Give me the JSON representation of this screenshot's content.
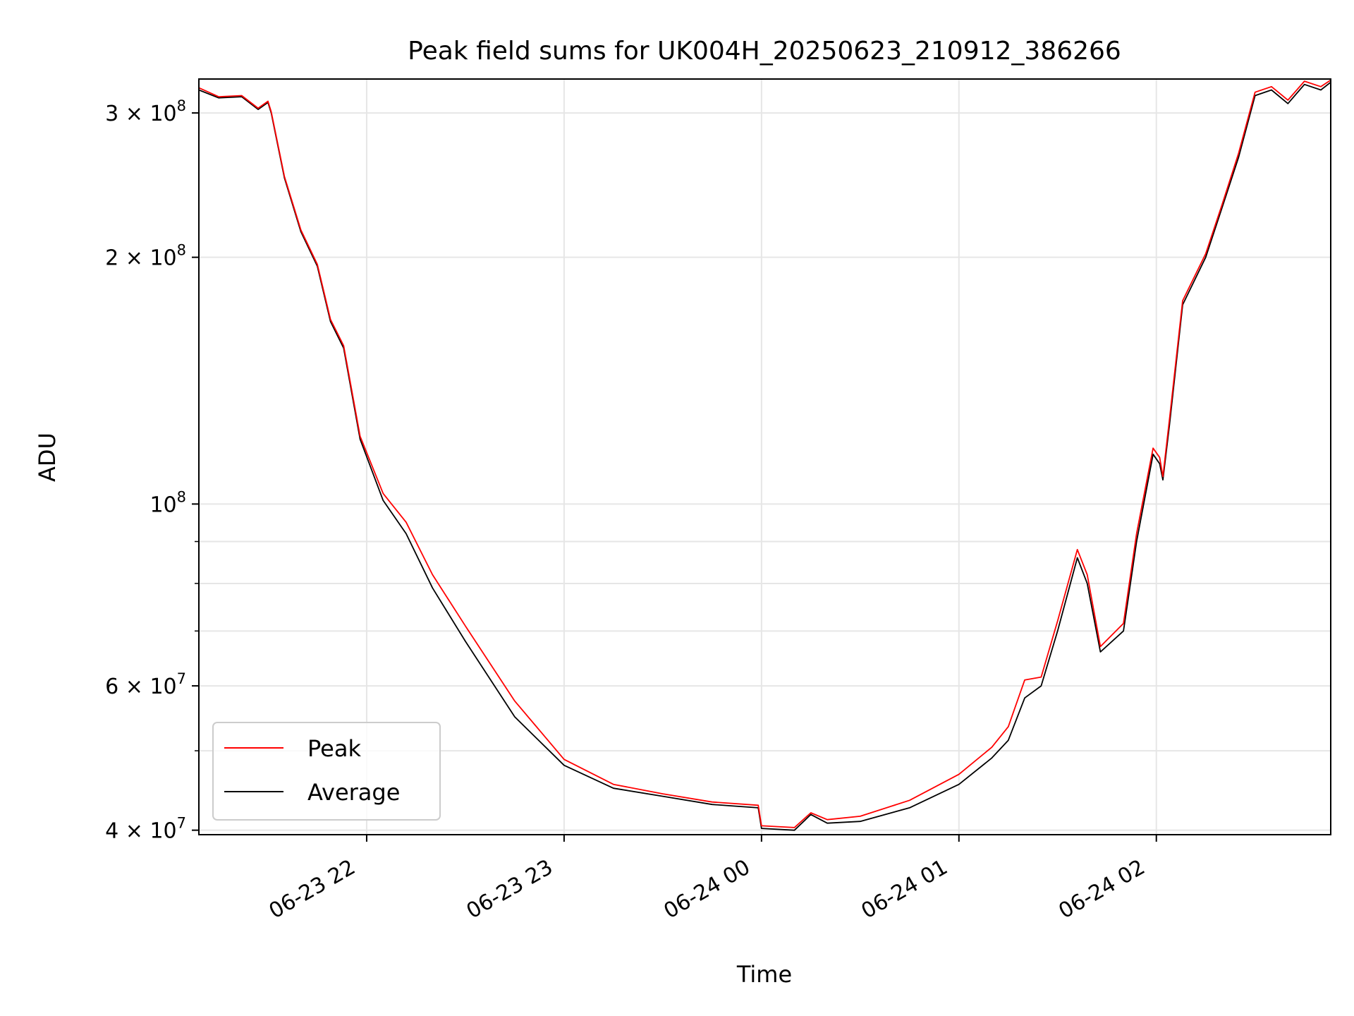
{
  "chart_data": {
    "type": "line",
    "title": "Peak field sums for UK004H_20250623_210912_386266",
    "xlabel": "Time",
    "ylabel": "ADU",
    "yscale": "log",
    "ylim": [
      39500000,
      330000000
    ],
    "xlim": [
      "2025-06-23 21:09",
      "2025-06-24 02:53"
    ],
    "grid": true,
    "legend_position": "lower left",
    "colors": {
      "peak": "#ff0000",
      "average": "#000000",
      "grid": "#e6e6e6"
    },
    "x_ticks": [
      {
        "t": "2025-06-23 22:00",
        "label": "06-23 22"
      },
      {
        "t": "2025-06-23 23:00",
        "label": "06-23 23"
      },
      {
        "t": "2025-06-24 00:00",
        "label": "06-24 00"
      },
      {
        "t": "2025-06-24 01:00",
        "label": "06-24 01"
      },
      {
        "t": "2025-06-24 02:00",
        "label": "06-24 02"
      }
    ],
    "y_major_ticks": [
      {
        "value": 40000000,
        "mant": "4",
        "exp": "7"
      },
      {
        "value": 60000000,
        "mant": "6",
        "exp": "7"
      },
      {
        "value": 100000000,
        "mant": "",
        "exp": "8"
      },
      {
        "value": 200000000,
        "mant": "2",
        "exp": "8"
      },
      {
        "value": 300000000,
        "mant": "3",
        "exp": "8"
      }
    ],
    "y_minor_ticks": [
      50000000,
      70000000,
      80000000,
      90000000
    ],
    "legend": {
      "peak": "Peak",
      "average": "Average"
    },
    "series": [
      {
        "name": "Average",
        "key": "average",
        "points": [
          [
            "2025-06-23 21:09",
            320000000
          ],
          [
            "2025-06-23 21:15",
            313000000
          ],
          [
            "2025-06-23 21:22",
            314000000
          ],
          [
            "2025-06-23 21:27",
            303000000
          ],
          [
            "2025-06-23 21:30",
            309000000
          ],
          [
            "2025-06-23 21:31",
            300000000
          ],
          [
            "2025-06-23 21:35",
            250000000
          ],
          [
            "2025-06-23 21:40",
            215000000
          ],
          [
            "2025-06-23 21:45",
            195000000
          ],
          [
            "2025-06-23 21:49",
            167000000
          ],
          [
            "2025-06-23 21:53",
            155000000
          ],
          [
            "2025-06-23 21:58",
            120000000
          ],
          [
            "2025-06-23 22:05",
            101000000
          ],
          [
            "2025-06-23 22:12",
            92000000
          ],
          [
            "2025-06-23 22:20",
            79000000
          ],
          [
            "2025-06-23 22:30",
            68000000
          ],
          [
            "2025-06-23 22:45",
            55000000
          ],
          [
            "2025-06-23 23:00",
            48000000
          ],
          [
            "2025-06-23 23:15",
            45000000
          ],
          [
            "2025-06-23 23:30",
            44000000
          ],
          [
            "2025-06-23 23:45",
            43000000
          ],
          [
            "2025-06-23 23:59",
            42600000
          ],
          [
            "2025-06-24 00:00",
            40200000
          ],
          [
            "2025-06-24 00:10",
            40000000
          ],
          [
            "2025-06-24 00:15",
            41800000
          ],
          [
            "2025-06-24 00:20",
            40800000
          ],
          [
            "2025-06-24 00:30",
            41000000
          ],
          [
            "2025-06-24 00:45",
            42600000
          ],
          [
            "2025-06-24 01:00",
            45500000
          ],
          [
            "2025-06-24 01:10",
            49000000
          ],
          [
            "2025-06-24 01:15",
            51500000
          ],
          [
            "2025-06-24 01:20",
            58000000
          ],
          [
            "2025-06-24 01:25",
            60000000
          ],
          [
            "2025-06-24 01:30",
            70000000
          ],
          [
            "2025-06-24 01:36",
            86000000
          ],
          [
            "2025-06-24 01:39",
            80000000
          ],
          [
            "2025-06-24 01:43",
            66000000
          ],
          [
            "2025-06-24 01:50",
            70000000
          ],
          [
            "2025-06-24 01:54",
            90000000
          ],
          [
            "2025-06-24 01:59",
            115000000
          ],
          [
            "2025-06-24 02:01",
            112000000
          ],
          [
            "2025-06-24 02:02",
            107000000
          ],
          [
            "2025-06-24 02:04",
            125000000
          ],
          [
            "2025-06-24 02:08",
            175000000
          ],
          [
            "2025-06-24 02:15",
            200000000
          ],
          [
            "2025-06-24 02:20",
            230000000
          ],
          [
            "2025-06-24 02:25",
            265000000
          ],
          [
            "2025-06-24 02:30",
            315000000
          ],
          [
            "2025-06-24 02:35",
            320000000
          ],
          [
            "2025-06-24 02:40",
            308000000
          ],
          [
            "2025-06-24 02:45",
            325000000
          ],
          [
            "2025-06-24 02:50",
            320000000
          ],
          [
            "2025-06-24 02:53",
            327000000
          ]
        ]
      },
      {
        "name": "Peak",
        "key": "peak",
        "points": [
          [
            "2025-06-23 21:09",
            322000000
          ],
          [
            "2025-06-23 21:15",
            314000000
          ],
          [
            "2025-06-23 21:22",
            315000000
          ],
          [
            "2025-06-23 21:27",
            304000000
          ],
          [
            "2025-06-23 21:30",
            310000000
          ],
          [
            "2025-06-23 21:31",
            301000000
          ],
          [
            "2025-06-23 21:35",
            251000000
          ],
          [
            "2025-06-23 21:40",
            216000000
          ],
          [
            "2025-06-23 21:45",
            196000000
          ],
          [
            "2025-06-23 21:49",
            168000000
          ],
          [
            "2025-06-23 21:53",
            156000000
          ],
          [
            "2025-06-23 21:58",
            121000000
          ],
          [
            "2025-06-23 22:05",
            103000000
          ],
          [
            "2025-06-23 22:12",
            95000000
          ],
          [
            "2025-06-23 22:20",
            82000000
          ],
          [
            "2025-06-23 22:30",
            71000000
          ],
          [
            "2025-06-23 22:45",
            57500000
          ],
          [
            "2025-06-23 23:00",
            48800000
          ],
          [
            "2025-06-23 23:15",
            45500000
          ],
          [
            "2025-06-23 23:30",
            44300000
          ],
          [
            "2025-06-23 23:45",
            43300000
          ],
          [
            "2025-06-23 23:59",
            42900000
          ],
          [
            "2025-06-24 00:00",
            40500000
          ],
          [
            "2025-06-24 00:10",
            40300000
          ],
          [
            "2025-06-24 00:15",
            42000000
          ],
          [
            "2025-06-24 00:20",
            41200000
          ],
          [
            "2025-06-24 00:30",
            41600000
          ],
          [
            "2025-06-24 00:45",
            43500000
          ],
          [
            "2025-06-24 01:00",
            46800000
          ],
          [
            "2025-06-24 01:10",
            50500000
          ],
          [
            "2025-06-24 01:15",
            53500000
          ],
          [
            "2025-06-24 01:20",
            61000000
          ],
          [
            "2025-06-24 01:25",
            61500000
          ],
          [
            "2025-06-24 01:30",
            72000000
          ],
          [
            "2025-06-24 01:36",
            88000000
          ],
          [
            "2025-06-24 01:39",
            82000000
          ],
          [
            "2025-06-24 01:43",
            67000000
          ],
          [
            "2025-06-24 01:50",
            71500000
          ],
          [
            "2025-06-24 01:54",
            92000000
          ],
          [
            "2025-06-24 01:59",
            117000000
          ],
          [
            "2025-06-24 02:01",
            114000000
          ],
          [
            "2025-06-24 02:02",
            108000000
          ],
          [
            "2025-06-24 02:04",
            127000000
          ],
          [
            "2025-06-24 02:08",
            177000000
          ],
          [
            "2025-06-24 02:15",
            202000000
          ],
          [
            "2025-06-24 02:20",
            232000000
          ],
          [
            "2025-06-24 02:25",
            268000000
          ],
          [
            "2025-06-24 02:30",
            318000000
          ],
          [
            "2025-06-24 02:35",
            323000000
          ],
          [
            "2025-06-24 02:40",
            311000000
          ],
          [
            "2025-06-24 02:45",
            328000000
          ],
          [
            "2025-06-24 02:50",
            323000000
          ],
          [
            "2025-06-24 02:53",
            329000000
          ]
        ]
      }
    ]
  }
}
